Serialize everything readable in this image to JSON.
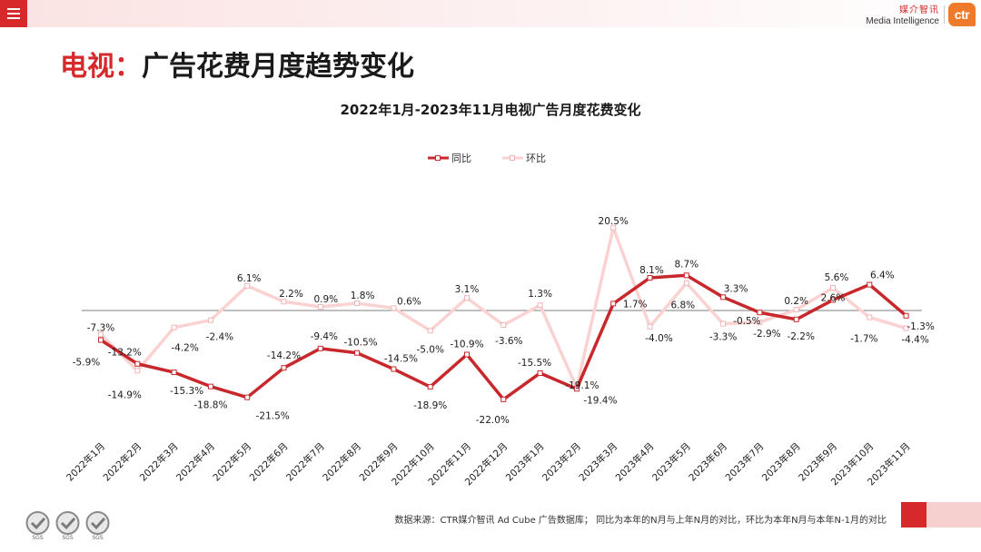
{
  "header": {
    "brand_cn": "媒介智讯",
    "brand_en": "Media Intelligence",
    "brand_logo": "ctr",
    "menu_icon": "hamburger-menu-icon"
  },
  "slide": {
    "title_accent": "电视：",
    "title_rest": "广告花费月度趋势变化"
  },
  "footer": {
    "source": "数据来源：CTR媒介智讯 Ad Cube 广告数据库； 同比为本年的N月与上年N月的对比，环比为本年N月与本年N-1月的对比",
    "certification_label": "SGS"
  },
  "colors": {
    "accent": "#d7282b",
    "series_yoy": "#c8282b",
    "series_mom": "#fad2d2",
    "zero_line": "#7f7f7f"
  },
  "chart_data": {
    "type": "line",
    "title": "2022年1月-2023年11月电视广告月度花费变化",
    "legend_position": "top-center",
    "grid": false,
    "unit": "%",
    "ylim": [
      -26,
      28
    ],
    "categories": [
      "2022年1月",
      "2022年2月",
      "2022年3月",
      "2022年4月",
      "2022年5月",
      "2022年6月",
      "2022年7月",
      "2022年8月",
      "2022年9月",
      "2022年10月",
      "2022年11月",
      "2022年12月",
      "2023年1月",
      "2023年2月",
      "2023年3月",
      "2023年4月",
      "2023年5月",
      "2023年6月",
      "2023年7月",
      "2023年8月",
      "2023年9月",
      "2023年10月",
      "2023年11月"
    ],
    "series": [
      {
        "name": "同比",
        "values": [
          -7.3,
          -13.2,
          -15.3,
          -18.8,
          -21.5,
          -14.2,
          -9.4,
          -10.5,
          -14.5,
          -18.9,
          -10.9,
          -22.0,
          -15.5,
          -19.4,
          1.7,
          8.1,
          8.7,
          3.3,
          -0.5,
          -2.2,
          2.6,
          6.4,
          -1.3
        ],
        "labels": [
          "-7.3%",
          "-13.2%",
          "-15.3%",
          "-18.8%",
          "-21.5%",
          "-14.2%",
          "-9.4%",
          "-10.5%",
          "-14.5%",
          "-18.9%",
          "-10.9%",
          "-22.0%",
          "-15.5%",
          "-19.4%",
          "1.7%",
          "8.1%",
          "8.7%",
          "3.3%",
          "-0.5%",
          "-2.2%",
          "2.6%",
          "6.4%",
          "-1.3%"
        ]
      },
      {
        "name": "环比",
        "values": [
          -5.9,
          -14.9,
          -4.2,
          -2.4,
          6.1,
          2.2,
          0.9,
          1.8,
          0.6,
          -5.0,
          3.1,
          -3.6,
          1.3,
          -19.1,
          20.5,
          -4.0,
          6.8,
          -3.3,
          -2.9,
          0.2,
          5.6,
          -1.7,
          -4.4
        ],
        "labels": [
          "-5.9%",
          "-14.9%",
          "-4.2%",
          "-2.4%",
          "6.1%",
          "2.2%",
          "0.9%",
          "1.8%",
          "0.6%",
          "-5.0%",
          "3.1%",
          "-3.6%",
          "1.3%",
          "-19.1%",
          "20.5%",
          "-4.0%",
          "6.8%",
          "-3.3%",
          "-2.9%",
          "0.2%",
          "5.6%",
          "-1.7%",
          "-4.4%"
        ]
      }
    ]
  }
}
